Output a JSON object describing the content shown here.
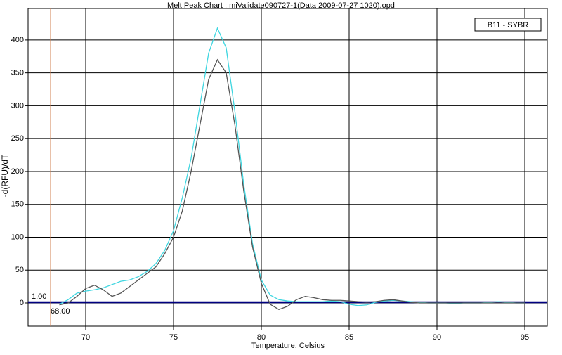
{
  "chart_data": {
    "type": "line",
    "title": "Melt Peak Chart : miValidate090727-1(Data 2009-07-27 1020).opd",
    "x_label": "Temperature, Celsius",
    "y_label": "-d(RFU)/dT",
    "legend": "B11 - SYBR",
    "x": [
      68.5,
      69,
      69.5,
      70,
      70.5,
      71,
      71.5,
      72,
      72.5,
      73,
      73.5,
      74,
      74.5,
      75,
      75.5,
      76,
      76.5,
      77,
      77.5,
      78,
      78.5,
      79,
      79.5,
      80,
      80.5,
      81,
      81.5,
      82,
      82.5,
      83,
      83.5,
      84,
      84.5,
      85,
      85.5,
      86,
      86.5,
      87,
      87.5,
      88,
      88.5,
      89,
      89.5,
      90,
      90.5,
      91,
      91.5,
      92,
      92.5,
      93,
      93.5,
      94,
      94.5,
      95
    ],
    "series": [
      {
        "color": "#3fd6e0",
        "values": [
          -2,
          5,
          15,
          18,
          20,
          23,
          28,
          33,
          35,
          40,
          48,
          60,
          80,
          110,
          160,
          220,
          300,
          380,
          418,
          388,
          290,
          180,
          90,
          35,
          12,
          5,
          3,
          2,
          2,
          2,
          2,
          3,
          2,
          -2,
          -4,
          -3,
          1,
          3,
          4,
          3,
          2,
          1,
          0,
          0,
          0,
          -1,
          0,
          0,
          0,
          1,
          2,
          1,
          0,
          0
        ]
      },
      {
        "color": "#555555",
        "values": [
          -3,
          0,
          10,
          22,
          27,
          20,
          10,
          15,
          25,
          35,
          45,
          55,
          75,
          100,
          140,
          200,
          270,
          340,
          370,
          350,
          270,
          170,
          85,
          30,
          -2,
          -10,
          -5,
          5,
          10,
          8,
          5,
          4,
          4,
          3,
          2,
          1,
          2,
          4,
          5,
          3,
          1,
          0,
          0,
          0,
          0,
          0,
          0,
          0,
          0,
          0,
          0,
          0,
          0,
          0
        ]
      }
    ],
    "threshold": {
      "value": 1,
      "label": "1.00",
      "color": "#000080"
    },
    "cursor": {
      "value": 68,
      "label": "68.00",
      "color": "#d08050"
    },
    "xlim": [
      66.72,
      96.28
    ],
    "ylim": [
      -35.3,
      448
    ],
    "xticks": [
      70,
      75,
      80,
      85,
      90,
      95
    ],
    "yticks": [
      0,
      50,
      100,
      150,
      200,
      250,
      300,
      350,
      400
    ],
    "grid": true
  }
}
